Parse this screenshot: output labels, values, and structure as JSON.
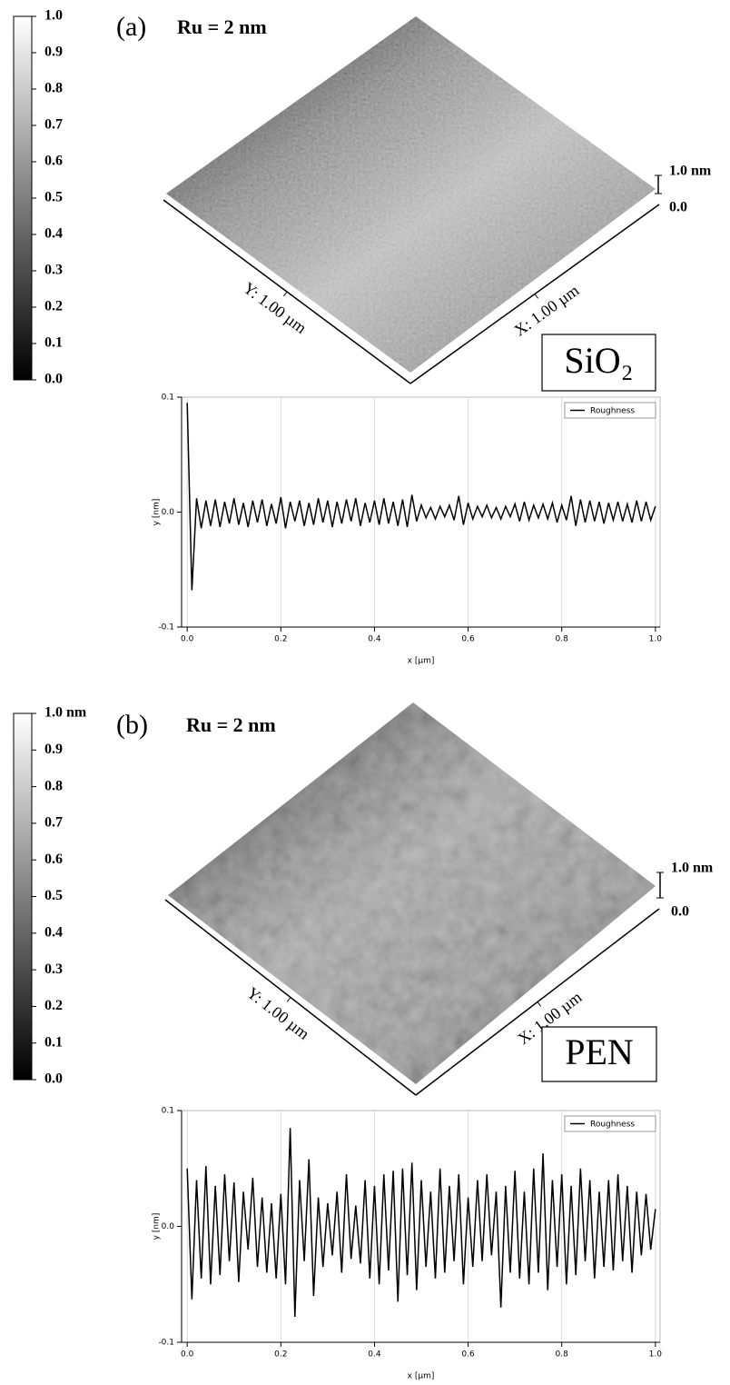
{
  "chart_data": [
    {
      "type": "surface",
      "panel_label": "(a)",
      "title": "Ru = 2 nm",
      "sample": "SiO₂",
      "x_label": "X: 1.00 µm",
      "y_label": "Y: 1.00 µm",
      "clim": [
        0,
        1
      ],
      "cticks": [
        {
          "value": 0,
          "label": "0.0"
        },
        0.1,
        0.2,
        0.3,
        0.4,
        0.5,
        0.6,
        0.7,
        0.8,
        0.9,
        {
          "value": 1,
          "label": "1.0"
        }
      ],
      "zticks": [
        {
          "value": 0,
          "label": "0.0"
        },
        {
          "value": 1,
          "label": "1.0 nm"
        }
      ]
    },
    {
      "type": "line",
      "x_label": "x [µm]",
      "y_label": "y [nm]",
      "x": [
        0,
        0.01,
        0.02,
        0.03,
        0.04,
        0.05,
        0.06,
        0.07,
        0.08,
        0.09,
        0.1,
        0.11,
        0.12,
        0.13,
        0.14,
        0.15,
        0.16,
        0.17,
        0.18,
        0.19,
        0.2,
        0.21,
        0.22,
        0.23,
        0.24,
        0.25,
        0.26,
        0.27,
        0.28,
        0.29,
        0.3,
        0.31,
        0.32,
        0.33,
        0.34,
        0.35,
        0.36,
        0.37,
        0.38,
        0.39,
        0.4,
        0.41,
        0.42,
        0.43,
        0.44,
        0.45,
        0.46,
        0.47,
        0.48,
        0.49,
        0.5,
        0.51,
        0.52,
        0.53,
        0.54,
        0.55,
        0.56,
        0.57,
        0.58,
        0.59,
        0.6,
        0.61,
        0.62,
        0.63,
        0.64,
        0.65,
        0.66,
        0.67,
        0.68,
        0.69,
        0.7,
        0.71,
        0.72,
        0.73,
        0.74,
        0.75,
        0.76,
        0.77,
        0.78,
        0.79,
        0.8,
        0.81,
        0.82,
        0.83,
        0.84,
        0.85,
        0.86,
        0.87,
        0.88,
        0.89,
        0.9,
        0.91,
        0.92,
        0.93,
        0.94,
        0.95,
        0.96,
        0.97,
        0.98,
        0.99,
        1
      ],
      "series": [
        {
          "name": "Roughness",
          "color": "#000000",
          "values": [
            0.095,
            -0.068,
            0.012,
            -0.014,
            0.01,
            -0.012,
            0.011,
            -0.013,
            0.009,
            -0.01,
            0.012,
            -0.011,
            0.008,
            -0.013,
            0.01,
            -0.009,
            0.011,
            -0.012,
            0.007,
            -0.01,
            0.013,
            -0.014,
            0.009,
            -0.008,
            0.01,
            -0.012,
            0.008,
            -0.011,
            0.012,
            -0.009,
            0.01,
            -0.013,
            0.009,
            -0.01,
            0.011,
            -0.008,
            0.012,
            -0.012,
            0.008,
            -0.009,
            0.01,
            -0.011,
            0.012,
            -0.01,
            0.009,
            -0.012,
            0.011,
            -0.013,
            0.015,
            -0.008,
            0.006,
            -0.005,
            0.004,
            -0.006,
            0.005,
            -0.004,
            0.006,
            -0.007,
            0.014,
            -0.011,
            0.008,
            -0.006,
            0.005,
            -0.004,
            0.006,
            -0.005,
            0.004,
            -0.006,
            0.005,
            -0.004,
            0.007,
            -0.008,
            0.009,
            -0.007,
            0.006,
            -0.005,
            0.007,
            -0.006,
            0.008,
            -0.009,
            0.006,
            -0.007,
            0.014,
            -0.012,
            0.011,
            -0.009,
            0.01,
            -0.008,
            0.009,
            -0.01,
            0.008,
            -0.007,
            0.009,
            -0.008,
            0.007,
            -0.009,
            0.01,
            -0.008,
            0.009,
            -0.007,
            0.005
          ]
        }
      ],
      "xlim": [
        -0.012,
        1.01
      ],
      "ylim": [
        -0.1,
        0.1
      ],
      "xticks": [
        {
          "value": 0,
          "label": "0.0"
        },
        0.2,
        0.4,
        0.6,
        0.8,
        {
          "value": 1,
          "label": "1.0"
        }
      ],
      "yticks": [
        -0.1,
        {
          "value": 0,
          "label": "0.0"
        },
        0.1
      ],
      "grid": "x",
      "legend": "upper right"
    },
    {
      "type": "surface",
      "panel_label": "(b)",
      "title": "Ru = 2 nm",
      "sample": "PEN",
      "x_label": "X: 1.00 µm",
      "y_label": "Y: 1.00 µm",
      "clim": [
        0,
        1
      ],
      "cticks": [
        {
          "value": 0,
          "label": "0.0"
        },
        0.1,
        0.2,
        0.3,
        0.4,
        0.5,
        0.6,
        0.7,
        0.8,
        0.9,
        {
          "value": 1,
          "label": "1.0 nm"
        }
      ],
      "zticks": [
        {
          "value": 0,
          "label": "0.0"
        },
        {
          "value": 1,
          "label": "1.0 nm"
        }
      ]
    },
    {
      "type": "line",
      "x_label": "x [µm]",
      "y_label": "y [nm]",
      "x": [
        0,
        0.01,
        0.02,
        0.03,
        0.04,
        0.05,
        0.06,
        0.07,
        0.08,
        0.09,
        0.1,
        0.11,
        0.12,
        0.13,
        0.14,
        0.15,
        0.16,
        0.17,
        0.18,
        0.19,
        0.2,
        0.21,
        0.22,
        0.23,
        0.24,
        0.25,
        0.26,
        0.27,
        0.28,
        0.29,
        0.3,
        0.31,
        0.32,
        0.33,
        0.34,
        0.35,
        0.36,
        0.37,
        0.38,
        0.39,
        0.4,
        0.41,
        0.42,
        0.43,
        0.44,
        0.45,
        0.46,
        0.47,
        0.48,
        0.49,
        0.5,
        0.51,
        0.52,
        0.53,
        0.54,
        0.55,
        0.56,
        0.57,
        0.58,
        0.59,
        0.6,
        0.61,
        0.62,
        0.63,
        0.64,
        0.65,
        0.66,
        0.67,
        0.68,
        0.69,
        0.7,
        0.71,
        0.72,
        0.73,
        0.74,
        0.75,
        0.76,
        0.77,
        0.78,
        0.79,
        0.8,
        0.81,
        0.82,
        0.83,
        0.84,
        0.85,
        0.86,
        0.87,
        0.88,
        0.89,
        0.9,
        0.91,
        0.92,
        0.93,
        0.94,
        0.95,
        0.96,
        0.97,
        0.98,
        0.99,
        1
      ],
      "series": [
        {
          "name": "Roughness",
          "color": "#000000",
          "values": [
            0.05,
            -0.063,
            0.04,
            -0.045,
            0.052,
            -0.05,
            0.035,
            -0.042,
            0.045,
            -0.03,
            0.038,
            -0.048,
            0.03,
            -0.02,
            0.042,
            -0.035,
            0.025,
            -0.04,
            0.02,
            -0.045,
            0.028,
            -0.05,
            0.085,
            -0.078,
            0.04,
            -0.03,
            0.058,
            -0.06,
            0.025,
            -0.035,
            0.02,
            -0.025,
            0.03,
            -0.04,
            0.045,
            -0.028,
            0.018,
            -0.032,
            0.04,
            -0.045,
            0.035,
            -0.05,
            0.045,
            -0.038,
            0.048,
            -0.065,
            0.05,
            -0.042,
            0.055,
            -0.055,
            0.04,
            -0.035,
            0.03,
            -0.045,
            0.05,
            -0.04,
            0.035,
            -0.03,
            0.045,
            -0.05,
            0.025,
            -0.035,
            0.04,
            -0.03,
            0.045,
            -0.025,
            0.03,
            -0.07,
            0.035,
            -0.04,
            0.048,
            -0.045,
            0.03,
            -0.05,
            0.05,
            -0.04,
            0.063,
            -0.055,
            0.04,
            -0.035,
            0.045,
            -0.05,
            0.035,
            -0.042,
            0.05,
            -0.03,
            0.04,
            -0.045,
            0.03,
            -0.035,
            0.04,
            -0.038,
            0.045,
            -0.03,
            0.035,
            -0.04,
            0.03,
            -0.025,
            0.028,
            -0.02,
            0.015
          ]
        }
      ],
      "xlim": [
        -0.012,
        1.01
      ],
      "ylim": [
        -0.1,
        0.1
      ],
      "xticks": [
        {
          "value": 0,
          "label": "0.0"
        },
        0.2,
        0.4,
        0.6,
        0.8,
        {
          "value": 1,
          "label": "1.0"
        }
      ],
      "yticks": [
        -0.1,
        {
          "value": 0,
          "label": "0.0"
        },
        0.1
      ],
      "grid": "x",
      "legend": "upper right"
    }
  ]
}
